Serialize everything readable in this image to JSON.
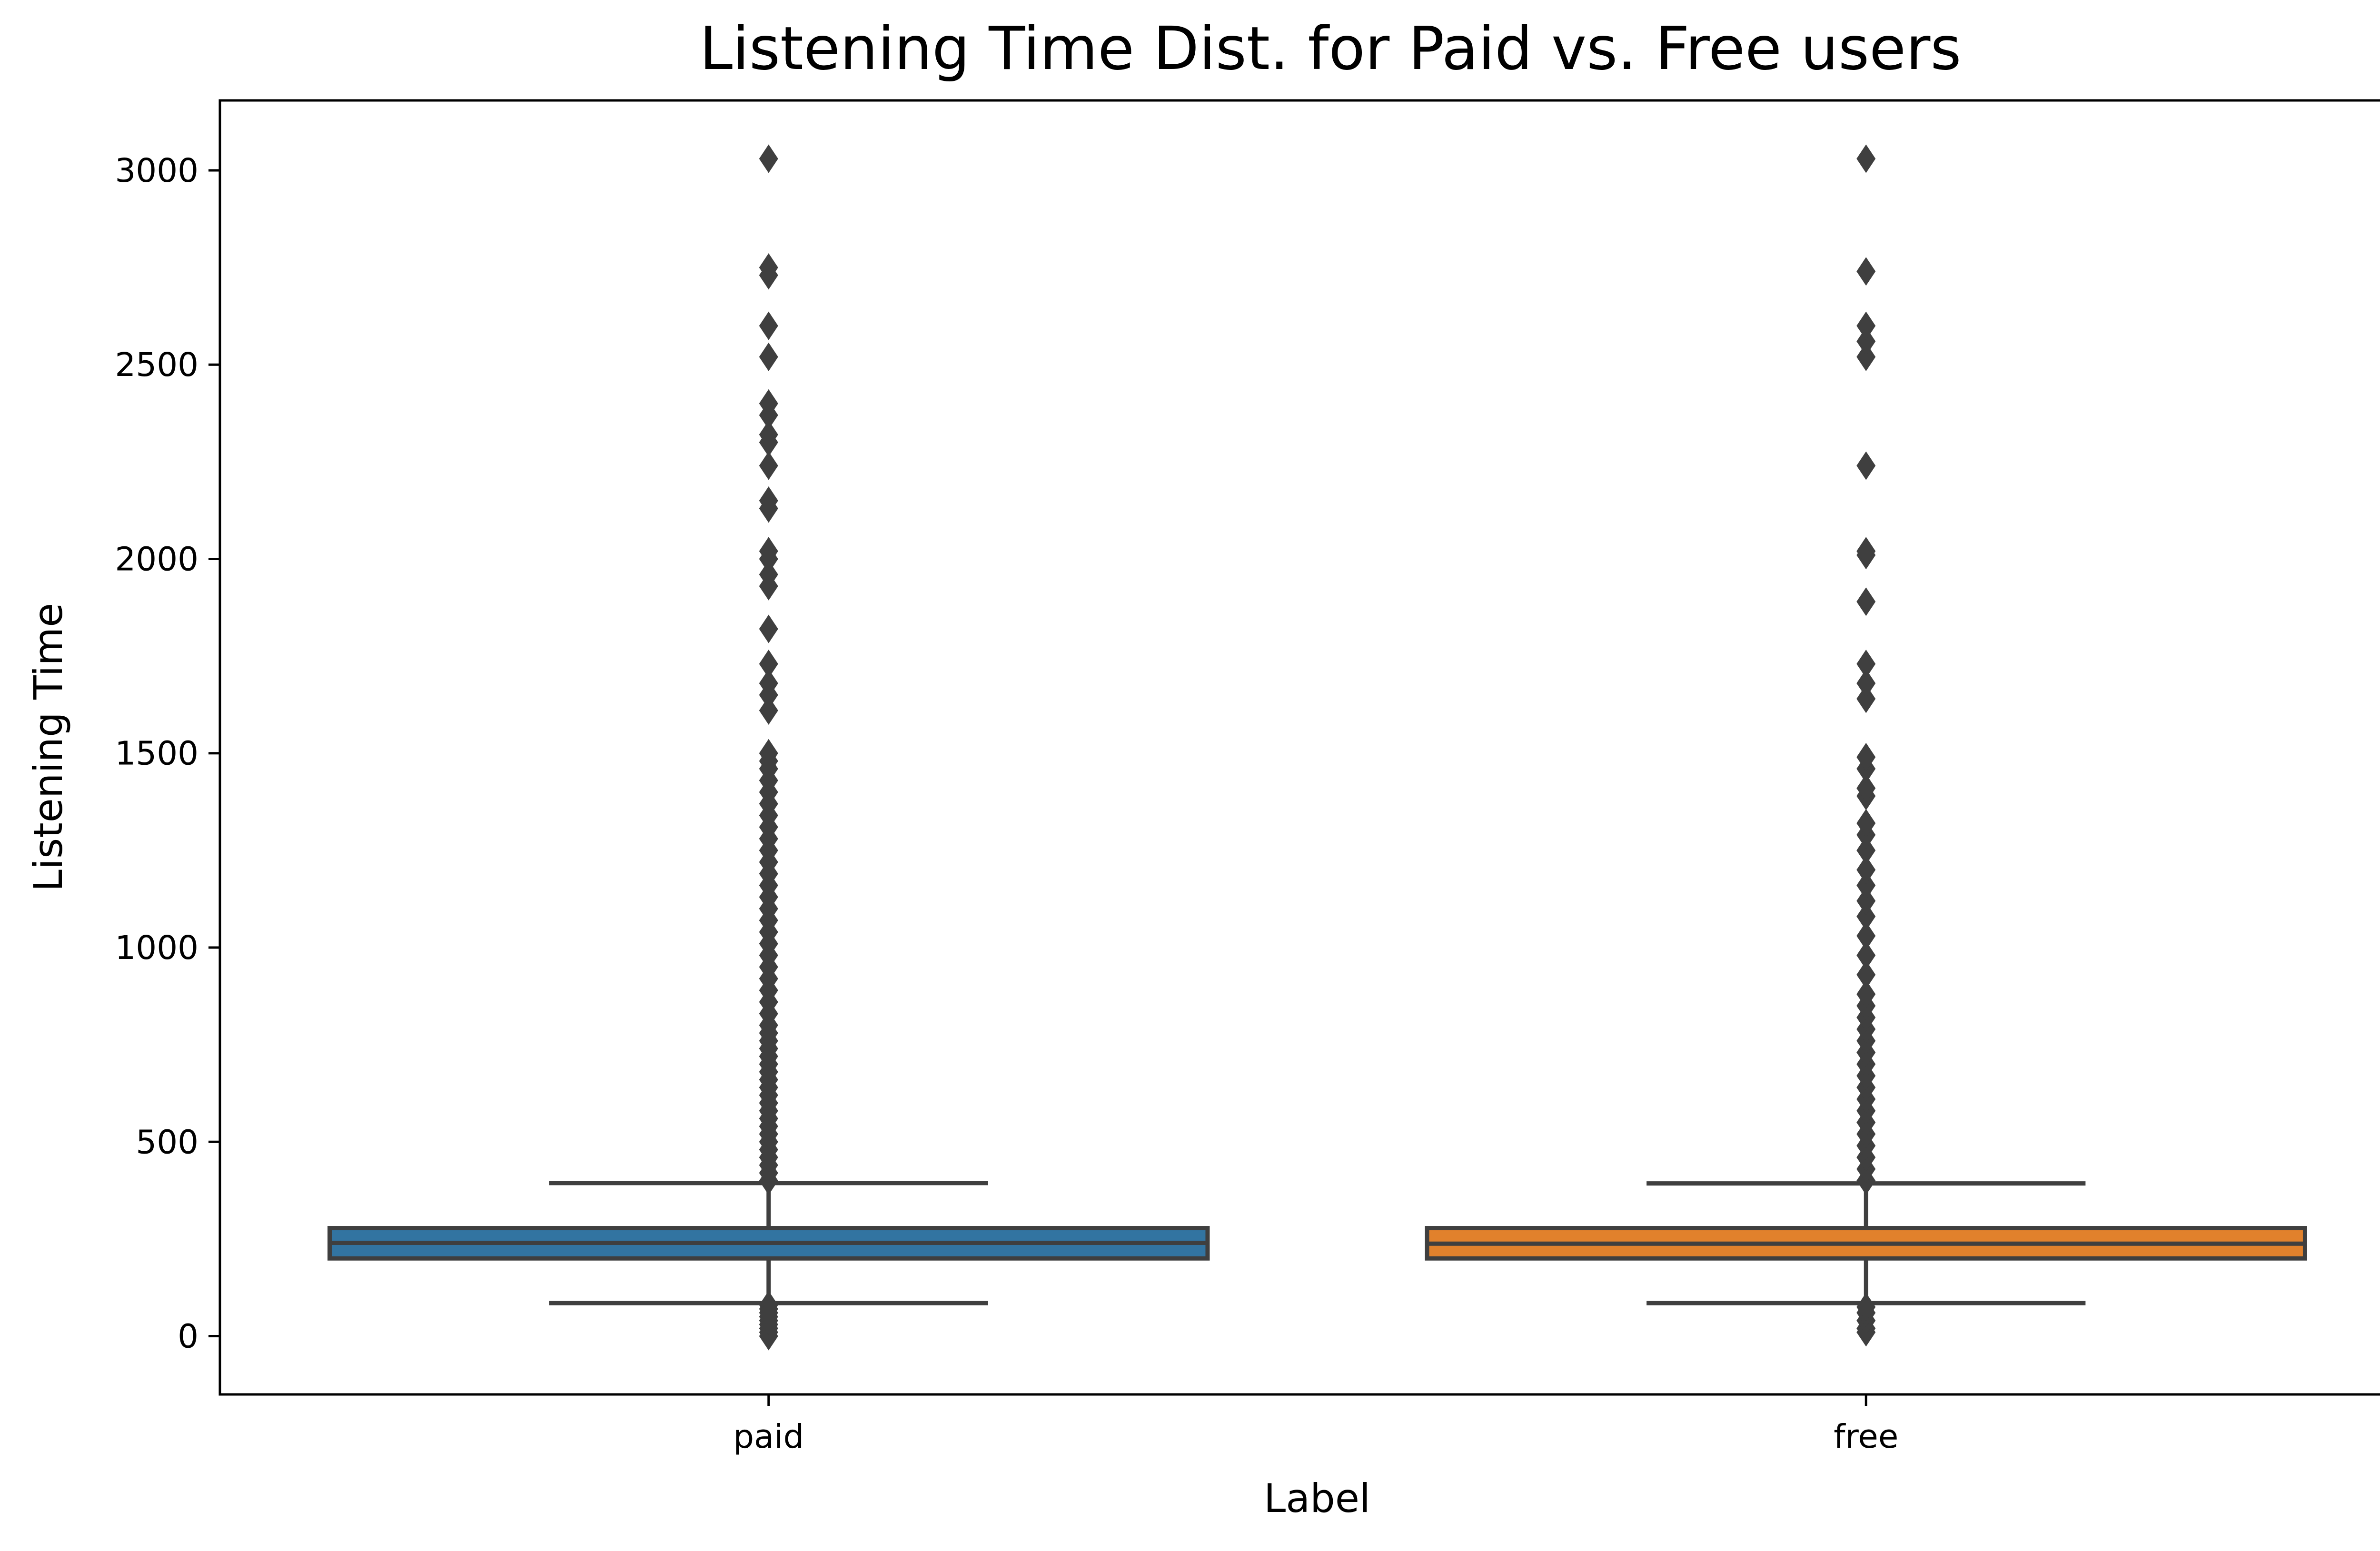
{
  "chart_data": {
    "type": "box",
    "title": "Listening Time Dist. for Paid vs. Free users",
    "xlabel": "Label",
    "ylabel": "Listening Time",
    "ylim": [
      -150,
      3180
    ],
    "yticks": [
      0,
      500,
      1000,
      1500,
      2000,
      2500,
      3000
    ],
    "grid": false,
    "legend": "none",
    "categories": [
      "paid",
      "free"
    ],
    "series": [
      {
        "category": "paid",
        "color": "#3274a1",
        "whisker_low": 85,
        "q1": 200,
        "median": 240,
        "q3": 278,
        "whisker_high": 394,
        "outliers": [
          0,
          10,
          20,
          30,
          40,
          50,
          60,
          70,
          80,
          400,
          420,
          440,
          460,
          480,
          500,
          520,
          540,
          560,
          580,
          600,
          620,
          640,
          660,
          680,
          700,
          720,
          740,
          760,
          780,
          800,
          830,
          860,
          890,
          920,
          950,
          980,
          1010,
          1040,
          1070,
          1100,
          1130,
          1160,
          1190,
          1220,
          1250,
          1280,
          1310,
          1340,
          1370,
          1400,
          1430,
          1460,
          1480,
          1500,
          1610,
          1650,
          1680,
          1730,
          1820,
          1930,
          1960,
          2000,
          2020,
          2130,
          2150,
          2240,
          2300,
          2320,
          2370,
          2400,
          2520,
          2600,
          2730,
          2750,
          3030
        ]
      },
      {
        "category": "free",
        "color": "#e1812c",
        "whisker_low": 85,
        "q1": 200,
        "median": 238,
        "q3": 278,
        "whisker_high": 393,
        "outliers": [
          10,
          20,
          40,
          60,
          75,
          400,
          430,
          460,
          490,
          520,
          550,
          580,
          610,
          640,
          670,
          700,
          730,
          760,
          790,
          820,
          850,
          880,
          930,
          980,
          1030,
          1080,
          1120,
          1160,
          1200,
          1250,
          1290,
          1320,
          1390,
          1410,
          1460,
          1490,
          1640,
          1680,
          1730,
          1890,
          2010,
          2020,
          2240,
          2520,
          2560,
          2600,
          2740,
          3030
        ]
      }
    ]
  }
}
